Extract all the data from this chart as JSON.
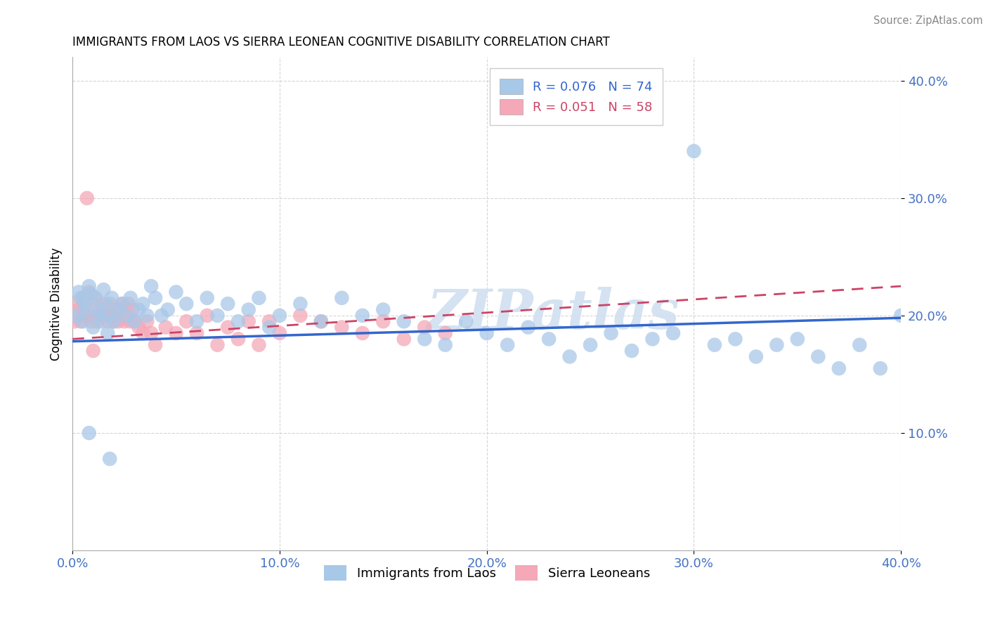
{
  "title": "IMMIGRANTS FROM LAOS VS SIERRA LEONEAN COGNITIVE DISABILITY CORRELATION CHART",
  "source": "Source: ZipAtlas.com",
  "ylabel": "Cognitive Disability",
  "x_label_blue": "Immigrants from Laos",
  "x_label_pink": "Sierra Leoneans",
  "xlim": [
    0.0,
    0.4
  ],
  "ylim": [
    0.0,
    0.42
  ],
  "xticks": [
    0.0,
    0.1,
    0.2,
    0.3,
    0.4
  ],
  "yticks": [
    0.1,
    0.2,
    0.3,
    0.4
  ],
  "xtick_labels": [
    "0.0%",
    "10.0%",
    "20.0%",
    "30.0%",
    "40.0%"
  ],
  "ytick_labels": [
    "10.0%",
    "20.0%",
    "30.0%",
    "40.0%"
  ],
  "legend_blue_label": "R = 0.076   N = 74",
  "legend_pink_label": "R = 0.051   N = 58",
  "blue_color": "#a8c8e8",
  "pink_color": "#f4a8b8",
  "blue_line_color": "#3366cc",
  "pink_line_color": "#cc4466",
  "watermark": "ZIPatlas",
  "blue_trend": [
    0.178,
    0.198
  ],
  "pink_trend": [
    0.18,
    0.225
  ],
  "blue_scatter_x": [
    0.002,
    0.003,
    0.004,
    0.005,
    0.006,
    0.007,
    0.008,
    0.009,
    0.01,
    0.011,
    0.012,
    0.013,
    0.014,
    0.015,
    0.016,
    0.017,
    0.018,
    0.019,
    0.02,
    0.022,
    0.024,
    0.026,
    0.028,
    0.03,
    0.032,
    0.034,
    0.036,
    0.038,
    0.04,
    0.043,
    0.046,
    0.05,
    0.055,
    0.06,
    0.065,
    0.07,
    0.075,
    0.08,
    0.085,
    0.09,
    0.095,
    0.1,
    0.11,
    0.12,
    0.13,
    0.14,
    0.15,
    0.16,
    0.17,
    0.18,
    0.19,
    0.2,
    0.21,
    0.22,
    0.23,
    0.24,
    0.25,
    0.26,
    0.27,
    0.28,
    0.29,
    0.3,
    0.31,
    0.32,
    0.33,
    0.34,
    0.35,
    0.36,
    0.37,
    0.38,
    0.39,
    0.4,
    0.008,
    0.018
  ],
  "blue_scatter_y": [
    0.2,
    0.22,
    0.215,
    0.195,
    0.21,
    0.205,
    0.225,
    0.218,
    0.19,
    0.215,
    0.2,
    0.205,
    0.195,
    0.222,
    0.21,
    0.185,
    0.2,
    0.215,
    0.195,
    0.205,
    0.21,
    0.2,
    0.215,
    0.195,
    0.205,
    0.21,
    0.2,
    0.225,
    0.215,
    0.2,
    0.205,
    0.22,
    0.21,
    0.195,
    0.215,
    0.2,
    0.21,
    0.195,
    0.205,
    0.215,
    0.19,
    0.2,
    0.21,
    0.195,
    0.215,
    0.2,
    0.205,
    0.195,
    0.18,
    0.175,
    0.195,
    0.185,
    0.175,
    0.19,
    0.18,
    0.165,
    0.175,
    0.185,
    0.17,
    0.18,
    0.185,
    0.34,
    0.175,
    0.18,
    0.165,
    0.175,
    0.18,
    0.165,
    0.155,
    0.175,
    0.155,
    0.2,
    0.1,
    0.078
  ],
  "pink_scatter_x": [
    0.001,
    0.002,
    0.003,
    0.004,
    0.005,
    0.005,
    0.006,
    0.007,
    0.008,
    0.009,
    0.01,
    0.011,
    0.012,
    0.013,
    0.014,
    0.015,
    0.016,
    0.017,
    0.018,
    0.019,
    0.02,
    0.021,
    0.022,
    0.023,
    0.024,
    0.025,
    0.026,
    0.027,
    0.028,
    0.029,
    0.03,
    0.032,
    0.034,
    0.036,
    0.038,
    0.04,
    0.045,
    0.05,
    0.055,
    0.06,
    0.065,
    0.07,
    0.075,
    0.08,
    0.085,
    0.09,
    0.095,
    0.1,
    0.11,
    0.12,
    0.13,
    0.14,
    0.15,
    0.16,
    0.17,
    0.18,
    0.007,
    0.01
  ],
  "pink_scatter_y": [
    0.195,
    0.21,
    0.205,
    0.195,
    0.215,
    0.2,
    0.21,
    0.2,
    0.22,
    0.195,
    0.205,
    0.215,
    0.195,
    0.2,
    0.21,
    0.205,
    0.2,
    0.195,
    0.21,
    0.2,
    0.195,
    0.205,
    0.195,
    0.205,
    0.21,
    0.195,
    0.2,
    0.21,
    0.195,
    0.205,
    0.195,
    0.19,
    0.185,
    0.195,
    0.185,
    0.175,
    0.19,
    0.185,
    0.195,
    0.185,
    0.2,
    0.175,
    0.19,
    0.18,
    0.195,
    0.175,
    0.195,
    0.185,
    0.2,
    0.195,
    0.19,
    0.185,
    0.195,
    0.18,
    0.19,
    0.185,
    0.3,
    0.17
  ]
}
